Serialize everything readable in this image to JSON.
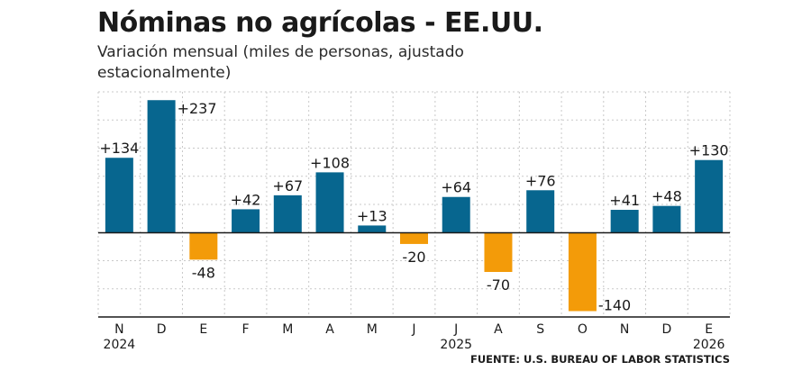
{
  "chart_data": {
    "type": "bar",
    "title": "Nóminas no agrícolas - EE.UU.",
    "subtitle": "Variación mensual (miles de personas, ajustado estacionalmente)",
    "source": "FUENTE: U.S. BUREAU OF LABOR STATISTICS",
    "categories": [
      "N",
      "D",
      "E",
      "F",
      "M",
      "A",
      "M",
      "J",
      "J",
      "A",
      "S",
      "O",
      "N",
      "D",
      "E"
    ],
    "year_labels": [
      {
        "category_index": 0,
        "label": "2024"
      },
      {
        "category_index": 8,
        "label": "2025"
      },
      {
        "category_index": 14,
        "label": "2026"
      }
    ],
    "values": [
      134,
      237,
      -48,
      42,
      67,
      108,
      13,
      -20,
      64,
      -70,
      76,
      -140,
      41,
      48,
      130
    ],
    "value_labels": [
      "+134",
      "+237",
      "-48",
      "+42",
      "+67",
      "+108",
      "+13",
      "-20",
      "+64",
      "-70",
      "+76",
      "-140",
      "+41",
      "+48",
      "+130"
    ],
    "ylim": [
      -150,
      240
    ],
    "grid": true,
    "colors": {
      "positive": "#07668f",
      "negative": "#f39b09",
      "grid": "#c9c9c9",
      "axis": "#1a1a1a"
    }
  }
}
